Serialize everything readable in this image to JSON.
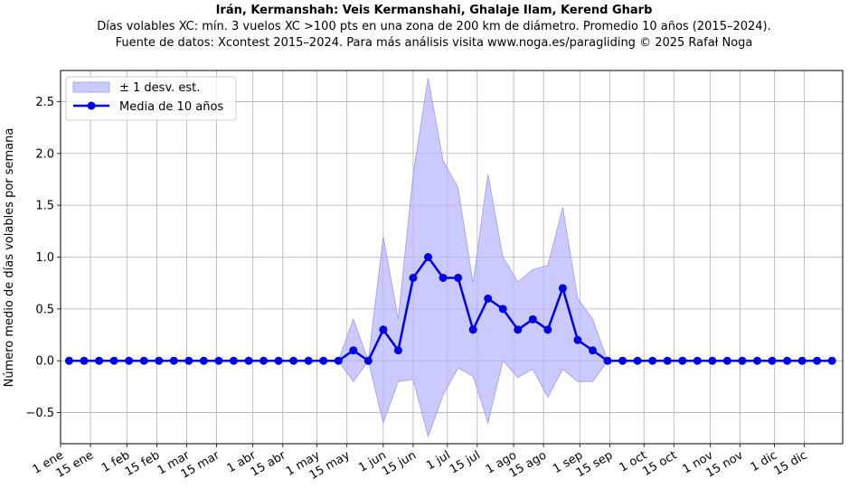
{
  "chart_data": {
    "type": "line",
    "title": "Irán, Kermanshah: Veis Kermanshahi, Ghalaje Ilam, Kerend Gharb",
    "subtitle_lines": [
      "Días volables XC: mín. 3 vuelos XC >100 pts en una zona de 200 km de diámetro. Promedio 10 años (2015–2024).",
      "Fuente de datos: Xcontest 2015–2024. Para más análisis visita www.noga.es/paragliding © 2025 Rafał Noga"
    ],
    "ylabel": "Número medio de días volables por semana",
    "xlabel": "",
    "x_ticks": [
      "1 ene",
      "15 ene",
      "1 feb",
      "15 feb",
      "1 mar",
      "15 mar",
      "1 abr",
      "15 abr",
      "1 may",
      "15 may",
      "1 jun",
      "15 jun",
      "1 jul",
      "15 jul",
      "1 ago",
      "15 ago",
      "1 sep",
      "15 sep",
      "1 oct",
      "15 oct",
      "1 nov",
      "15 nov",
      "1 dic",
      "15 dic"
    ],
    "x_tick_days": [
      1,
      15,
      32,
      46,
      60,
      74,
      91,
      105,
      121,
      135,
      152,
      166,
      182,
      196,
      213,
      227,
      244,
      258,
      274,
      288,
      305,
      319,
      335,
      349
    ],
    "xlim_days": [
      1,
      367
    ],
    "ylim": [
      -0.8,
      2.8
    ],
    "y_ticks": [
      -0.5,
      0.0,
      0.5,
      1.0,
      1.5,
      2.0,
      2.5
    ],
    "y_tick_labels": [
      "−0.5",
      "0.0",
      "0.5",
      "1.0",
      "1.5",
      "2.0",
      "2.5"
    ],
    "grid": true,
    "legend_position": "top-left",
    "series": [
      {
        "name": "Media de 10 años",
        "color": "#0000e6",
        "x_days": [
          5,
          12,
          19,
          26,
          33,
          40,
          47,
          54,
          61,
          68,
          75,
          82,
          89,
          96,
          103,
          110,
          117,
          124,
          131,
          138,
          145,
          152,
          159,
          166,
          173,
          180,
          187,
          194,
          201,
          208,
          215,
          222,
          229,
          236,
          243,
          250,
          257,
          264,
          271,
          278,
          285,
          292,
          299,
          306,
          313,
          320,
          327,
          334,
          341,
          348,
          355,
          362
        ],
        "values": [
          0,
          0,
          0,
          0,
          0,
          0,
          0,
          0,
          0,
          0,
          0,
          0,
          0,
          0,
          0,
          0,
          0,
          0,
          0,
          0.1,
          0,
          0.3,
          0.1,
          0.8,
          1.0,
          0.8,
          0.8,
          0.3,
          0.6,
          0.5,
          0.3,
          0.4,
          0.3,
          0.7,
          0.2,
          0.1,
          0,
          0,
          0,
          0,
          0,
          0,
          0,
          0,
          0,
          0,
          0,
          0,
          0,
          0,
          0,
          0
        ]
      },
      {
        "name": "± 1 desv. est.",
        "type": "band",
        "color": "#b3b3ff",
        "upper": [
          0,
          0,
          0,
          0,
          0,
          0,
          0,
          0,
          0,
          0,
          0,
          0,
          0,
          0,
          0,
          0,
          0,
          0,
          0,
          0.4,
          0,
          1.2,
          0.4,
          1.8,
          2.73,
          1.93,
          1.67,
          0.75,
          1.8,
          1.0,
          0.76,
          0.88,
          0.92,
          1.48,
          0.6,
          0.4,
          0,
          0,
          0,
          0,
          0,
          0,
          0,
          0,
          0,
          0,
          0,
          0,
          0,
          0,
          0,
          0
        ],
        "lower": [
          0,
          0,
          0,
          0,
          0,
          0,
          0,
          0,
          0,
          0,
          0,
          0,
          0,
          0,
          0,
          0,
          0,
          0,
          0,
          -0.2,
          0,
          -0.6,
          -0.2,
          -0.18,
          -0.73,
          -0.33,
          -0.07,
          -0.15,
          -0.6,
          0,
          -0.16,
          -0.08,
          -0.35,
          -0.08,
          -0.2,
          -0.2,
          0,
          0,
          0,
          0,
          0,
          0,
          0,
          0,
          0,
          0,
          0,
          0,
          0,
          0,
          0,
          0
        ]
      }
    ]
  },
  "legend": {
    "band_label": "± 1 desv. est.",
    "line_label": "Media de 10 años"
  }
}
